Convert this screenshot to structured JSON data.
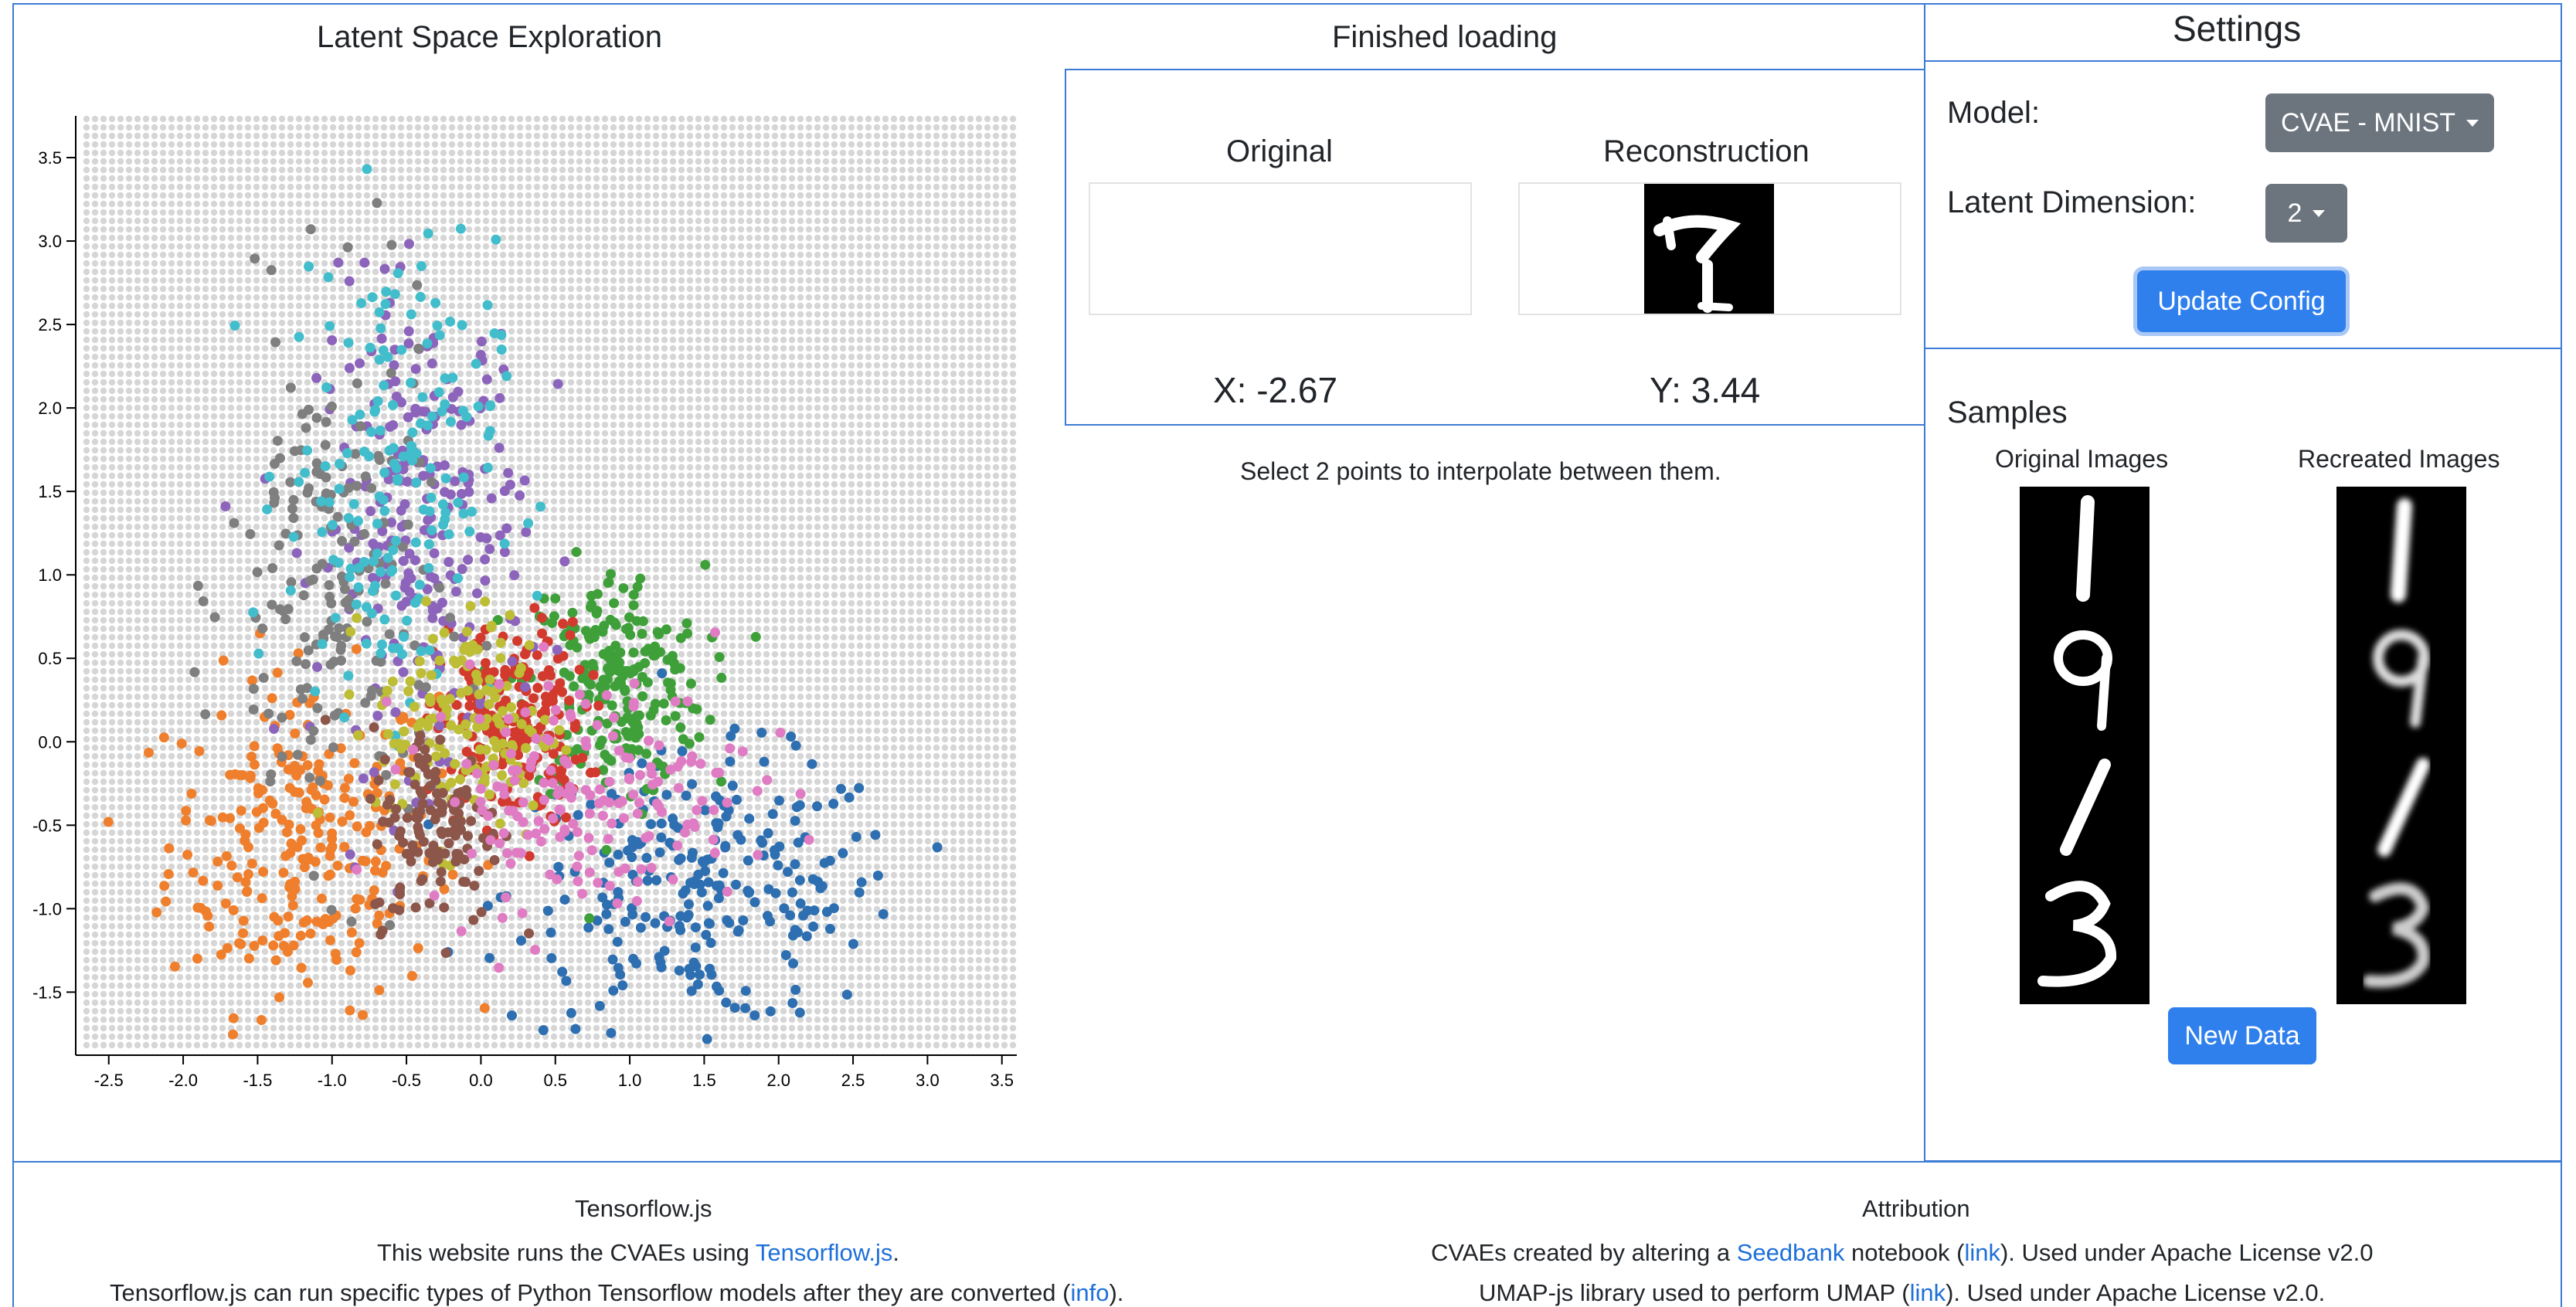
{
  "latent_panel": {
    "title": "Latent Space Exploration"
  },
  "status": {
    "text": "Finished loading"
  },
  "viewer": {
    "original_label": "Original",
    "reconstruction_label": "Reconstruction",
    "x_readout": "X: -2.67",
    "y_readout": "Y: 3.44",
    "hint": "Select 2 points to interpolate between them."
  },
  "settings": {
    "title": "Settings",
    "model_label": "Model:",
    "model_value": "CVAE - MNIST",
    "latent_label": "Latent Dimension:",
    "latent_value": "2",
    "update_button": "Update Config"
  },
  "samples": {
    "title": "Samples",
    "original_label": "Original Images",
    "recreated_label": "Recreated Images",
    "digits": [
      "1",
      "9",
      "1",
      "3"
    ],
    "new_data_button": "New Data"
  },
  "footer": {
    "tf_title": "Tensorflow.js",
    "tf_line1_pre": "This website runs the CVAEs using ",
    "tf_line1_link": "Tensorflow.js",
    "tf_line1_post": ".",
    "tf_line2_pre": "Tensorflow.js can run specific types of Python Tensorflow models after they are converted (",
    "tf_line2_link": "info",
    "tf_line2_post": ").",
    "attr_title": "Attribution",
    "attr_line1_pre": "CVAEs created by altering a ",
    "attr_line1_link1": "Seedbank",
    "attr_line1_mid": " notebook (",
    "attr_line1_link2": "link",
    "attr_line1_post": "). Used under Apache License v2.0",
    "attr_line2_pre": "UMAP-js library used to perform UMAP (",
    "attr_line2_link": "link",
    "attr_line2_post": "). Used under Apache License v2.0."
  },
  "colors": {
    "accent": "#2f80ed",
    "border": "#3c7bd6",
    "secondary_button": "#6c757d"
  },
  "chart_data": {
    "type": "scatter",
    "title": "",
    "xlabel": "",
    "ylabel": "",
    "xlim": [
      -2.67,
      3.6
    ],
    "ylim": [
      -1.85,
      3.75
    ],
    "x_ticks": [
      -2.5,
      -2.0,
      -1.5,
      -1.0,
      -0.5,
      0.0,
      0.5,
      1.0,
      1.5,
      2.0,
      2.5,
      3.0,
      3.5
    ],
    "y_ticks": [
      -1.5,
      -1.0,
      -0.5,
      0.0,
      0.5,
      1.0,
      1.5,
      2.0,
      2.5,
      3.0,
      3.5
    ],
    "x_tick_labels": [
      "-2.5",
      "-2.0",
      "-1.5",
      "-1.0",
      "-0.5",
      "0.0",
      "0.5",
      "1.0",
      "1.5",
      "2.0",
      "2.5",
      "3.0",
      "3.5"
    ],
    "y_tick_labels": [
      "-1.5",
      "-1.0",
      "-0.5",
      "0.0",
      "0.5",
      "1.0",
      "1.5",
      "2.0",
      "2.5",
      "3.0",
      "3.5"
    ],
    "background": "grid of light gray sample points",
    "series": [
      {
        "color": "#ef7f2c",
        "cx": -1.2,
        "cy": -0.6,
        "sx": 0.45,
        "sy": 0.5,
        "n": 260
      },
      {
        "color": "#2d6fb0",
        "cx": 1.5,
        "cy": -0.9,
        "sx": 0.65,
        "sy": 0.4,
        "n": 260
      },
      {
        "color": "#3fa03a",
        "cx": 0.9,
        "cy": 0.35,
        "sx": 0.3,
        "sy": 0.35,
        "n": 220
      },
      {
        "color": "#d33a2e",
        "cx": 0.2,
        "cy": 0.1,
        "sx": 0.25,
        "sy": 0.3,
        "n": 220
      },
      {
        "color": "#8d64bb",
        "cx": -0.4,
        "cy": 1.3,
        "sx": 0.35,
        "sy": 0.7,
        "n": 240
      },
      {
        "color": "#7f7f7f",
        "cx": -1.0,
        "cy": 0.9,
        "sx": 0.35,
        "sy": 0.8,
        "n": 180
      },
      {
        "color": "#42bdcc",
        "cx": -0.6,
        "cy": 1.6,
        "sx": 0.35,
        "sy": 0.7,
        "n": 180
      },
      {
        "color": "#bdbd36",
        "cx": -0.1,
        "cy": 0.1,
        "sx": 0.3,
        "sy": 0.35,
        "n": 150
      },
      {
        "color": "#8c564b",
        "cx": -0.3,
        "cy": -0.5,
        "sx": 0.22,
        "sy": 0.3,
        "n": 130
      },
      {
        "color": "#df7cc3",
        "cx": 0.7,
        "cy": -0.3,
        "sx": 0.55,
        "sy": 0.35,
        "n": 180
      }
    ]
  }
}
